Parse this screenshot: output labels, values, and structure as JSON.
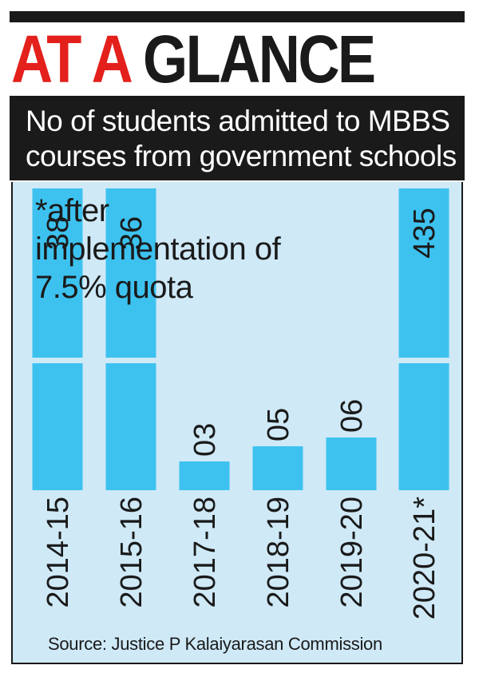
{
  "header": {
    "title_red": "AT A",
    "title_black": "GLANCE",
    "subtitle": "No of students admitted to MBBS courses from government schools"
  },
  "note": "*after\nimplementation of\n7.5% quota",
  "source": "Source: Justice P Kalaiyarasan Commission",
  "colors": {
    "bar": "#3dc2f0",
    "background": "#cfe9f7",
    "title_red": "#e3201b",
    "dark": "#1a1a1a"
  },
  "chart_data": {
    "type": "bar",
    "title": "No of students admitted to MBBS courses from government schools",
    "categories": [
      "2014-15",
      "2015-16",
      "2017-18",
      "2018-19",
      "2019-20",
      "2020-21*"
    ],
    "values": [
      38,
      36,
      3,
      5,
      6,
      435
    ],
    "value_labels": [
      "38",
      "36",
      "03",
      "05",
      "06",
      "435"
    ],
    "xlabel": "",
    "ylabel": "",
    "axis_break": true,
    "grid": false
  }
}
